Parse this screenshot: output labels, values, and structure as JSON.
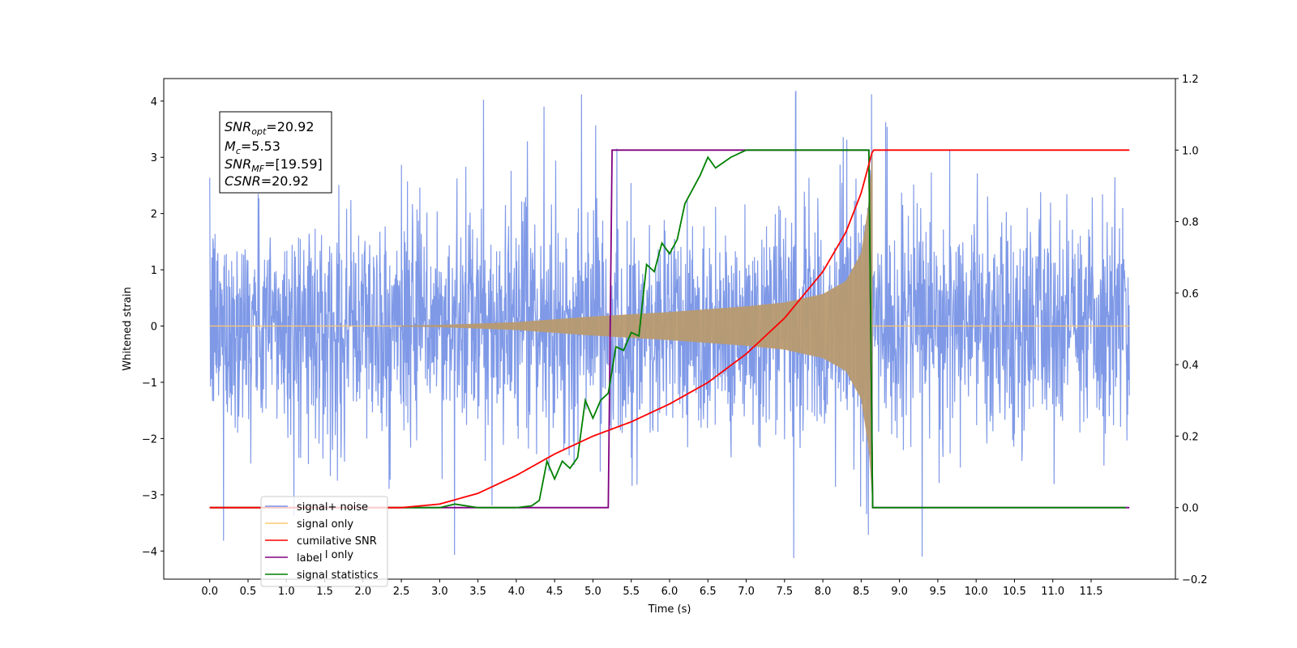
{
  "chart_data": {
    "type": "line",
    "xlabel": "Time (s)",
    "ylabel": "Whitened strain",
    "xlim": [
      -0.6,
      12.6
    ],
    "ylim": [
      -4.5,
      4.4
    ],
    "y2lim": [
      -0.2,
      1.2
    ],
    "x_ticks": [
      "0.0",
      "0.5",
      "1.0",
      "1.5",
      "2.0",
      "2.5",
      "3.0",
      "3.5",
      "4.0",
      "4.5",
      "5.0",
      "5.5",
      "6.0",
      "6.5",
      "7.0",
      "7.5",
      "8.0",
      "8.5",
      "9.0",
      "9.5",
      "10.0",
      "10.5",
      "11.0",
      "11.5"
    ],
    "y_ticks": [
      "4",
      "3",
      "2",
      "1",
      "0",
      "−1",
      "−2",
      "−3",
      "−4"
    ],
    "y2_ticks": [
      "1.2",
      "1.0",
      "0.8",
      "0.6",
      "0.4",
      "0.2",
      "0.0",
      "−0.2"
    ],
    "stats_box": {
      "snr_opt_main": "SNR",
      "snr_opt_sub": "opt",
      "snr_opt_value": "=20.92",
      "mc_main": "M",
      "mc_sub": "c",
      "mc_value": "=5.53",
      "snr_mf_main": "SNR",
      "snr_mf_sub": "MF",
      "snr_mf_value": "=[19.59]",
      "csnr_main": "CSNR",
      "csnr_value": "=20.92"
    },
    "legend": {
      "placement": "lower-left",
      "entries": [
        {
          "name": "signal+ noise",
          "color": "#7893e6"
        },
        {
          "name": "signal only",
          "color": "#ffc870"
        },
        {
          "name": "cumilative SNR",
          "color": "#ff0000"
        },
        {
          "name": "label",
          "color": "#800080"
        },
        {
          "name": "signal statistics",
          "color": "#008000"
        }
      ],
      "hidden_entry_text": "signal only"
    },
    "series": [
      {
        "name": "signal+ noise",
        "axis": "left",
        "color": "#7893e6",
        "x_range": [
          0.0,
          12.0
        ],
        "noise_amplitude": [
          -4.1,
          4.0
        ],
        "typical_band": [
          -2.0,
          2.0
        ]
      },
      {
        "name": "signal only",
        "axis": "left",
        "color": "#ffc870",
        "x_range": [
          0.0,
          8.65
        ],
        "envelope": [
          [
            0.0,
            0.0
          ],
          [
            2.0,
            0.0
          ],
          [
            3.0,
            0.02
          ],
          [
            4.0,
            0.07
          ],
          [
            5.0,
            0.17
          ],
          [
            6.0,
            0.25
          ],
          [
            7.0,
            0.35
          ],
          [
            7.5,
            0.42
          ],
          [
            8.0,
            0.57
          ],
          [
            8.3,
            0.8
          ],
          [
            8.5,
            1.3
          ],
          [
            8.6,
            2.2
          ],
          [
            8.65,
            3.2
          ]
        ]
      },
      {
        "name": "cumilative SNR",
        "axis": "right",
        "color": "#ff0000",
        "points": [
          [
            0.0,
            0.0
          ],
          [
            2.0,
            0.0
          ],
          [
            2.5,
            0.0
          ],
          [
            3.0,
            0.01
          ],
          [
            3.5,
            0.04
          ],
          [
            4.0,
            0.09
          ],
          [
            4.5,
            0.15
          ],
          [
            5.0,
            0.2
          ],
          [
            5.5,
            0.24
          ],
          [
            6.0,
            0.29
          ],
          [
            6.5,
            0.35
          ],
          [
            7.0,
            0.43
          ],
          [
            7.5,
            0.53
          ],
          [
            8.0,
            0.66
          ],
          [
            8.3,
            0.77
          ],
          [
            8.5,
            0.88
          ],
          [
            8.65,
            1.0
          ],
          [
            12.0,
            1.0
          ]
        ]
      },
      {
        "name": "label",
        "axis": "right",
        "color": "#800080",
        "points": [
          [
            0.0,
            0.0
          ],
          [
            5.2,
            0.0
          ],
          [
            5.25,
            1.0
          ],
          [
            8.6,
            1.0
          ],
          [
            8.65,
            0.0
          ],
          [
            12.0,
            0.0
          ]
        ]
      },
      {
        "name": "signal statistics",
        "axis": "right",
        "color": "#008000",
        "points": [
          [
            0.0,
            0.0
          ],
          [
            3.0,
            0.0
          ],
          [
            3.2,
            0.01
          ],
          [
            3.5,
            0.0
          ],
          [
            4.0,
            0.0
          ],
          [
            4.2,
            0.005
          ],
          [
            4.3,
            0.02
          ],
          [
            4.4,
            0.13
          ],
          [
            4.5,
            0.08
          ],
          [
            4.6,
            0.13
          ],
          [
            4.7,
            0.11
          ],
          [
            4.8,
            0.14
          ],
          [
            4.9,
            0.3
          ],
          [
            5.0,
            0.25
          ],
          [
            5.1,
            0.3
          ],
          [
            5.2,
            0.32
          ],
          [
            5.3,
            0.45
          ],
          [
            5.4,
            0.44
          ],
          [
            5.5,
            0.49
          ],
          [
            5.6,
            0.48
          ],
          [
            5.7,
            0.68
          ],
          [
            5.8,
            0.66
          ],
          [
            5.9,
            0.74
          ],
          [
            6.0,
            0.71
          ],
          [
            6.1,
            0.75
          ],
          [
            6.2,
            0.85
          ],
          [
            6.4,
            0.93
          ],
          [
            6.5,
            0.98
          ],
          [
            6.6,
            0.95
          ],
          [
            6.8,
            0.98
          ],
          [
            7.0,
            1.0
          ],
          [
            8.6,
            1.0
          ],
          [
            8.65,
            0.0
          ],
          [
            11.95,
            0.0
          ]
        ]
      }
    ]
  }
}
